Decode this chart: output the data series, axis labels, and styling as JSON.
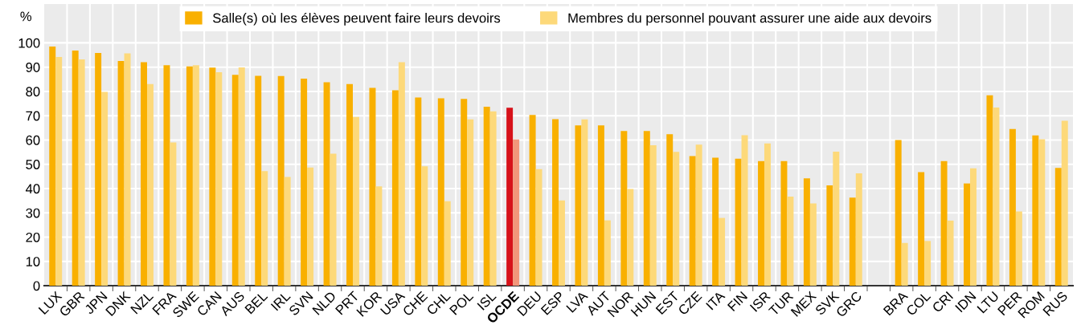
{
  "chart_data": {
    "type": "bar",
    "ylabel": "%",
    "categories": [
      "LUX",
      "GBR",
      "JPN",
      "DNK",
      "NZL",
      "FRA",
      "SWE",
      "CAN",
      "AUS",
      "BEL",
      "IRL",
      "SVN",
      "NLD",
      "PRT",
      "KOR",
      "USA",
      "CHE",
      "CHL",
      "POL",
      "ISL",
      "OCDE",
      "DEU",
      "ESP",
      "LVA",
      "AUT",
      "NOR",
      "HUN",
      "EST",
      "CZE",
      "ITA",
      "FIN",
      "ISR",
      "TUR",
      "MEX",
      "SVK",
      "GRC",
      null,
      "BRA",
      "COL",
      "CRI",
      "IDN",
      "LTU",
      "PER",
      "ROM",
      "RUS"
    ],
    "series": [
      {
        "name": "Salle(s) où les élèves peuvent faire leurs devoirs",
        "color": "#f9b000",
        "colors": [
          "#f9b000",
          "#f9b000",
          "#f9b000",
          "#f9b000",
          "#f9b000",
          "#f9b000",
          "#f9b000",
          "#f9b000",
          "#f9b000",
          "#f9b000",
          "#f9b000",
          "#f9b000",
          "#f9b000",
          "#f9b000",
          "#f9b000",
          "#f9b000",
          "#f9b000",
          "#f9b000",
          "#f9b000",
          "#f9b000",
          "#d7121a",
          "#f9b000",
          "#f9b000",
          "#f9b000",
          "#f9b000",
          "#f9b000",
          "#f9b000",
          "#f9b000",
          "#f9b000",
          "#f9b000",
          "#f9b000",
          "#f9b000",
          "#f9b000",
          "#f9b000",
          "#f9b000",
          "#f9b000",
          "#f9b000",
          "#f9b000",
          "#f9b000",
          "#f9b000",
          "#f9b000",
          "#f9b000",
          "#f9b000",
          "#f9b000",
          "#f9b000"
        ],
        "values": [
          98.5,
          96.8,
          95.8,
          92.5,
          92,
          90.8,
          90.3,
          89.8,
          86.8,
          86.4,
          86.3,
          85.3,
          83.8,
          83,
          81.5,
          80.5,
          77.5,
          77.2,
          76.9,
          73.7,
          73.3,
          70.3,
          68.6,
          66,
          66,
          63.7,
          63.7,
          62.4,
          53.4,
          52.7,
          52.3,
          51.3,
          51.3,
          44.2,
          41.3,
          36.3,
          null,
          60,
          46.8,
          51.3,
          42.1,
          78.4,
          64.5,
          61.9,
          48.5
        ]
      },
      {
        "name": "Membres du personnel pouvant assurer une aide aux devoirs",
        "color": "#fdd97a",
        "colors": [
          "#fdd97a",
          "#fdd97a",
          "#fdd97a",
          "#fdd97a",
          "#fdd97a",
          "#fdd97a",
          "#fdd97a",
          "#fdd97a",
          "#fdd97a",
          "#fdd97a",
          "#fdd97a",
          "#fdd97a",
          "#fdd97a",
          "#fdd97a",
          "#fdd97a",
          "#fdd97a",
          "#fdd97a",
          "#fdd97a",
          "#fdd97a",
          "#fdd97a",
          "#f2967a",
          "#fdd97a",
          "#fdd97a",
          "#fdd97a",
          "#fdd97a",
          "#fdd97a",
          "#fdd97a",
          "#fdd97a",
          "#fdd97a",
          "#fdd97a",
          "#fdd97a",
          "#fdd97a",
          "#fdd97a",
          "#fdd97a",
          "#fdd97a",
          "#fdd97a",
          "#fdd97a",
          "#fdd97a",
          "#fdd97a",
          "#fdd97a",
          "#fdd97a",
          "#fdd97a",
          "#fdd97a",
          "#fdd97a",
          "#fdd97a"
        ],
        "values": [
          94.2,
          93.2,
          79.8,
          95.7,
          83,
          59,
          90.8,
          87.9,
          89.9,
          47.2,
          44.8,
          48.7,
          54.4,
          69.5,
          40.9,
          92,
          49.2,
          34.8,
          68.5,
          71.8,
          60.2,
          48,
          35.1,
          68.5,
          26.9,
          39.8,
          57.8,
          55.1,
          58.1,
          27.9,
          62,
          58.6,
          36.7,
          33.9,
          55.2,
          46.3,
          null,
          17.6,
          18.4,
          26.8,
          48.3,
          73.4,
          30.6,
          60.3,
          67.9
        ]
      }
    ],
    "ylim": [
      0,
      116
    ],
    "yticks": [
      0,
      10,
      20,
      30,
      40,
      50,
      60,
      70,
      80,
      90,
      100
    ],
    "grid": true,
    "legend": "top"
  }
}
